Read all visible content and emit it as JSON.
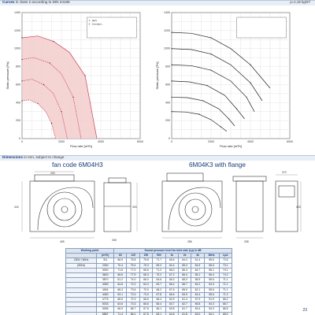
{
  "header": {
    "section_label": "Curves",
    "section_note": "in class 2 according to DIN 24166",
    "density_note": "ρ=1,15 kg/m³"
  },
  "dimensions_bar": {
    "label": "Dimensions",
    "note": "in mm, subject to change"
  },
  "titles": {
    "left": "fan code 6M04H3",
    "right": "6M04K3 with flange"
  },
  "colors": {
    "accent": "#1a3c7a",
    "curve_fill": "#f3c9c9",
    "curve_stroke": "#c8455a",
    "grid": "#c9c9c9"
  },
  "chart_data": [
    {
      "type": "line",
      "title": "",
      "xlabel": "Flow rate [m³/h]",
      "ylabel": "Static pressure [Pa]",
      "ylim": [
        0,
        1400
      ],
      "xlim": [
        0,
        6000
      ],
      "y_ticks": [
        "0",
        "200",
        "400",
        "600",
        "800",
        "1000",
        "1200",
        "1400"
      ],
      "x_ticks": [
        "0",
        "2000",
        "4000",
        "6000"
      ],
      "grid": true,
      "legend_position": "top-right",
      "legend_entries": [
        "1 - (∆m)",
        "2 - Constant..."
      ],
      "series": [
        {
          "x": [
            0,
            800,
            1600,
            2400,
            3200,
            3800
          ],
          "values": [
            1120,
            1140,
            1080,
            960,
            700,
            0
          ]
        },
        {
          "x": [
            0,
            600,
            1400,
            2000,
            2600,
            3000
          ],
          "values": [
            880,
            900,
            840,
            720,
            460,
            0
          ]
        },
        {
          "x": [
            0,
            500,
            1100,
            1600,
            2000,
            2300
          ],
          "values": [
            640,
            660,
            600,
            500,
            300,
            0
          ]
        },
        {
          "x": [
            0,
            400,
            800,
            1200,
            1500,
            1700
          ],
          "values": [
            420,
            430,
            390,
            300,
            170,
            0
          ]
        }
      ]
    },
    {
      "type": "line",
      "title": "",
      "xlabel": "Flow rate [m³/h]",
      "ylabel": "Static pressure [Pa]",
      "ylim": [
        0,
        1400
      ],
      "xlim": [
        0,
        6000
      ],
      "y_ticks": [
        "0",
        "200",
        "400",
        "600",
        "800",
        "1000",
        "1200",
        "1400"
      ],
      "x_ticks": [
        "0",
        "2000",
        "4000",
        "6000"
      ],
      "grid": true,
      "legend_position": "top-right",
      "series": [
        {
          "x": [
            0,
            1000,
            2000,
            3000,
            4000,
            5000
          ],
          "values": [
            1180,
            1170,
            1120,
            1000,
            820,
            560
          ]
        },
        {
          "x": [
            0,
            1000,
            2000,
            3000,
            4000,
            4600
          ],
          "values": [
            1000,
            990,
            940,
            820,
            620,
            420
          ]
        },
        {
          "x": [
            0,
            1000,
            2000,
            3000,
            3800,
            4200
          ],
          "values": [
            820,
            810,
            760,
            640,
            460,
            300
          ]
        },
        {
          "x": [
            0,
            900,
            1800,
            2700,
            3300,
            3700
          ],
          "values": [
            640,
            630,
            590,
            480,
            330,
            220
          ]
        },
        {
          "x": [
            0,
            800,
            1600,
            2400,
            2900,
            3200
          ],
          "values": [
            460,
            455,
            420,
            330,
            220,
            140
          ]
        },
        {
          "x": [
            0,
            700,
            1400,
            2000,
            2500,
            2800
          ],
          "values": [
            300,
            296,
            270,
            210,
            130,
            80
          ]
        }
      ]
    }
  ],
  "dims": {
    "w1": "455",
    "w2": "296",
    "w3": "338",
    "w4": "286",
    "w5": "200",
    "h1": "343",
    "h2": "300",
    "h3": "115",
    "h4": "45",
    "h5": "371",
    "r1": "403",
    "r2": "373"
  },
  "spl_table": {
    "working_point_label": "Working point",
    "sound_header": "Sound pressure level for inlet side (Lp) in dB",
    "col_units": [
      "(m³/h)",
      "63",
      "125",
      "250",
      "500",
      "1k",
      "2k",
      "4k",
      "8kHz",
      "LpA"
    ],
    "row_labels": [
      "230V / 50Hz",
      "(50Hz)"
    ],
    "rows": [
      [
        "",
        "311",
        "66.5",
        "75.8",
        "75.8",
        "71.7",
        "65.6",
        "64.4",
        "61.4",
        "55.6",
        "72.6"
      ],
      [
        "",
        "2260",
        "70.4",
        "75.4",
        "75.3",
        "69.2",
        "64.4",
        "65.3",
        "64.5",
        "56.6",
        "73.1"
      ],
      [
        "",
        "3000",
        "71.6",
        "77.0",
        "66.6",
        "71.2",
        "66.0",
        "66.4",
        "64.7",
        "55.1",
        "74.1"
      ],
      [
        "",
        "3600",
        "66.6",
        "77.9",
        "66.3",
        "70.2",
        "67.2",
        "66.4",
        "65.1",
        "56.4",
        "74.2"
      ],
      [
        "",
        "3870",
        "61.2",
        "74.0",
        "66.0",
        "64.6",
        "65.3",
        "68.3",
        "65.9",
        "55.6",
        "71.1"
      ],
      [
        "",
        "4083",
        "64.6",
        "72.2",
        "64.4",
        "63.7",
        "66.4",
        "66.7",
        "64.2",
        "54.3",
        "71.1"
      ],
      [
        "",
        "4264",
        "66.3",
        "73.6",
        "70.0",
        "66.2",
        "67.6",
        "65.0",
        "62.1",
        "55.6",
        "71.1"
      ],
      [
        "",
        "4450",
        "63.1",
        "73.3",
        "73.0",
        "67.8",
        "66.6",
        "63.9",
        "63.4",
        "55.6",
        "71.2"
      ],
      [
        "",
        "4775",
        "66.6",
        "72.3",
        "66.6",
        "66.4",
        "63.9",
        "61.4",
        "57.9",
        "51.9",
        "66.2"
      ],
      [
        "",
        "5033",
        "64.6",
        "73.3",
        "66.6",
        "66.4",
        "63.7",
        "62.7",
        "56.8",
        "54.3",
        "66.7"
      ],
      [
        "",
        "5266",
        "66.9",
        "66.7",
        "67.6",
        "66.1",
        "63.8",
        "61.7",
        "63.4",
        "54.3",
        "66.5"
      ],
      [
        "",
        "5587",
        "71.4",
        "66.1",
        "67.5",
        "63.1",
        "64.6",
        "61.8",
        "63.0",
        "54.1",
        "69.0"
      ]
    ]
  },
  "page_number": "23"
}
